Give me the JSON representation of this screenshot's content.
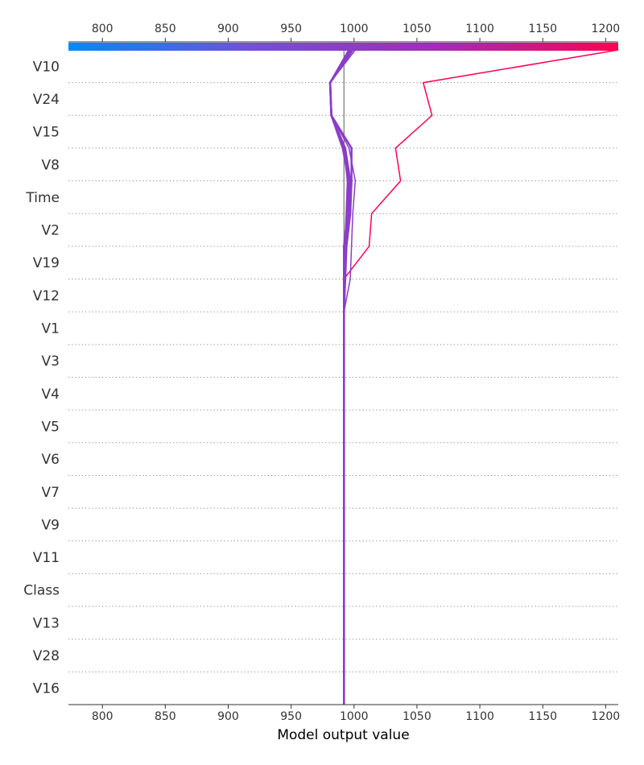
{
  "chart_data": {
    "type": "line",
    "subtype": "shap-decision-plot",
    "xlabel": "Model output value",
    "xlim": [
      773,
      1210
    ],
    "xticks": [
      800,
      850,
      900,
      950,
      1000,
      1050,
      1100,
      1150,
      1200
    ],
    "base_value": 992,
    "grid": "dotted-horizontal",
    "colorbar": {
      "position": "top",
      "range": [
        773,
        1210
      ],
      "colors": [
        "#008bfb",
        "#7150dc",
        "#a12cbb",
        "#ff0051"
      ]
    },
    "features": [
      "V10",
      "V24",
      "V15",
      "V8",
      "Time",
      "V2",
      "V19",
      "V12",
      "V1",
      "V3",
      "V4",
      "V5",
      "V6",
      "V7",
      "V9",
      "V11",
      "Class",
      "V13",
      "V28",
      "V16"
    ],
    "series": [
      {
        "final_value": 1210,
        "values": [
          1210,
          1055,
          1062,
          1033,
          1037,
          1014,
          1012,
          992,
          992,
          992,
          992,
          992,
          992,
          992,
          992,
          992,
          992,
          992,
          992,
          992,
          992
        ],
        "width": 1.5
      },
      {
        "final_value": 1001,
        "values": [
          1001,
          981,
          982,
          996,
          1001,
          999,
          998,
          997,
          992,
          992,
          992,
          992,
          992,
          992,
          992,
          992,
          992,
          992,
          992,
          992,
          992
        ],
        "width": 1.5
      },
      {
        "final_value": 999,
        "values": [
          999,
          981,
          982,
          998,
          998,
          997,
          994,
          993,
          992,
          992,
          992,
          992,
          992,
          992,
          992,
          992,
          992,
          992,
          992,
          992,
          992
        ],
        "width": 2.5
      },
      {
        "final_value": 998,
        "values": [
          998,
          981,
          982,
          993,
          997,
          996,
          993,
          992,
          992,
          992,
          992,
          992,
          992,
          992,
          992,
          992,
          992,
          992,
          992,
          992,
          992
        ],
        "width": 2.5
      },
      {
        "final_value": 997,
        "values": [
          997,
          981,
          982,
          991,
          996,
          995,
          992,
          992,
          992,
          992,
          992,
          992,
          992,
          992,
          992,
          992,
          992,
          992,
          992,
          992,
          992
        ],
        "width": 2.5
      },
      {
        "final_value": 996,
        "values": [
          996,
          981,
          982,
          992,
          995,
          994,
          993,
          992,
          992,
          992,
          992,
          992,
          992,
          992,
          992,
          992,
          992,
          992,
          992,
          992,
          992
        ],
        "width": 2.5
      }
    ]
  }
}
